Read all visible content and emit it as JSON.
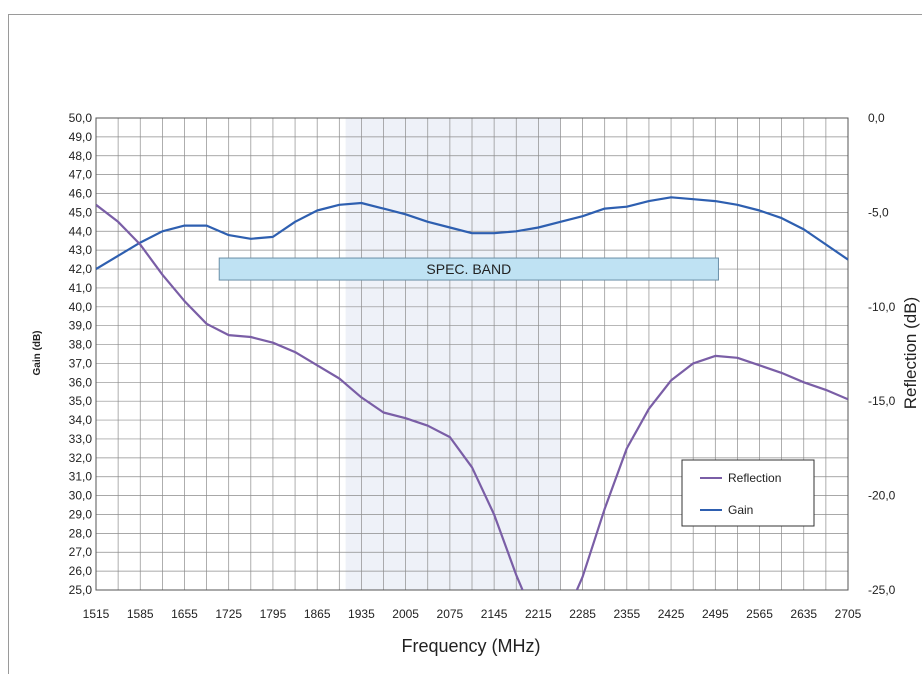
{
  "chart_data": {
    "type": "line",
    "xlabel": "Frequency (MHz)",
    "ylabel": "Gain (dB)",
    "y2label": "Reflection (dB)",
    "x": [
      1515,
      1550,
      1585,
      1620,
      1655,
      1690,
      1725,
      1760,
      1795,
      1830,
      1865,
      1900,
      1935,
      1970,
      2005,
      2040,
      2075,
      2110,
      2145,
      2180,
      2215,
      2250,
      2285,
      2320,
      2355,
      2390,
      2425,
      2460,
      2495,
      2530,
      2565,
      2600,
      2635,
      2670,
      2705
    ],
    "x_ticks": [
      "1515",
      "1585",
      "1655",
      "1725",
      "1795",
      "1865",
      "1935",
      "2005",
      "2075",
      "2145",
      "2215",
      "2285",
      "2355",
      "2425",
      "2495",
      "2565",
      "2635",
      "2705"
    ],
    "ylim": [
      25,
      50
    ],
    "y_ticks": [
      "25,0",
      "26,0",
      "27,0",
      "28,0",
      "29,0",
      "30,0",
      "31,0",
      "32,0",
      "33,0",
      "34,0",
      "35,0",
      "36,0",
      "37,0",
      "38,0",
      "39,0",
      "40,0",
      "41,0",
      "42,0",
      "43,0",
      "44,0",
      "45,0",
      "46,0",
      "47,0",
      "48,0",
      "49,0",
      "50,0"
    ],
    "y2lim": [
      -25,
      0
    ],
    "y2_ticks": [
      "0,0",
      "-5,0",
      "-10,0",
      "-15,0",
      "-20,0",
      "-25,0"
    ],
    "grid": true,
    "legend_position": "lower-right",
    "series": [
      {
        "name": "Gain",
        "axis": "left",
        "color": "#2e5fb0",
        "values": [
          42.0,
          42.7,
          43.4,
          44.0,
          44.3,
          44.3,
          43.8,
          43.6,
          43.7,
          44.5,
          45.1,
          45.4,
          45.5,
          45.2,
          44.9,
          44.5,
          44.2,
          43.9,
          43.9,
          44.0,
          44.2,
          44.5,
          44.8,
          45.2,
          45.3,
          45.6,
          45.8,
          45.7,
          45.6,
          45.4,
          45.1,
          44.7,
          44.1,
          43.3,
          42.5
        ]
      },
      {
        "name": "Reflection",
        "axis": "right",
        "color": "#7a5ea6",
        "values": [
          -4.6,
          -5.5,
          -6.7,
          -8.3,
          -9.7,
          -10.9,
          -11.5,
          -11.6,
          -11.9,
          -12.4,
          -13.1,
          -13.8,
          -14.8,
          -15.6,
          -15.9,
          -16.3,
          -16.9,
          -18.5,
          -21.0,
          -24.2,
          -27.0,
          -27.0,
          -24.3,
          -20.7,
          -17.5,
          -15.4,
          -13.9,
          -13.0,
          -12.6,
          -12.7,
          -13.1,
          -13.5,
          -14.0,
          -14.4,
          -14.9
        ]
      }
    ],
    "annotations": [
      {
        "text": "SPEC. BAND",
        "x_start": 1710,
        "x_end": 2500,
        "y": 42.0
      }
    ]
  }
}
